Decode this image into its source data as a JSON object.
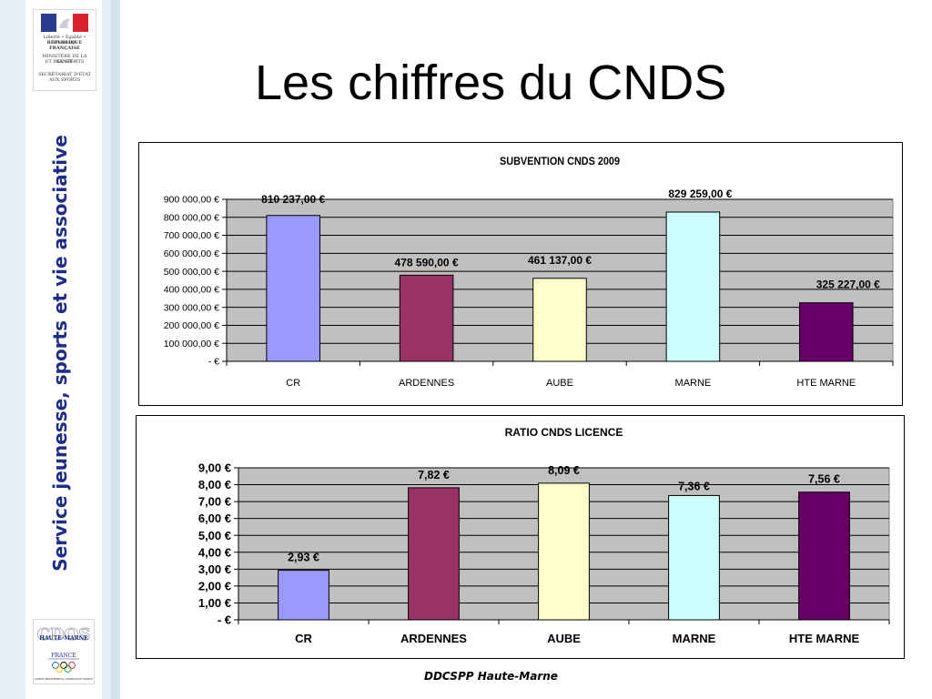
{
  "slide": {
    "title": "Les chiffres du CNDS",
    "sidebar_text": "Service jeunesse, sports et vie associative",
    "footer": "DDCSPP Haute-Marne",
    "logo_top": {
      "motto": "Liberté • Égalité • Fraternité",
      "republic": "RÉPUBLIQUE FRANÇAISE",
      "ministry": [
        "MINISTÈRE DE LA SANTÉ",
        "ET DES SPORTS"
      ],
      "secretariat": [
        "SECRÉTARIAT D'ÉTAT",
        "AUX SPORTS"
      ]
    },
    "logo_bottom": {
      "name": "CDOS",
      "region": "HAUTE-MARNE",
      "country": "FRANCE",
      "caption": "COMITÉ DÉPARTEMENTAL OLYMPIQUE ET SPORTIF"
    }
  },
  "chart_data": [
    {
      "type": "bar",
      "title": "SUBVENTION CNDS 2009",
      "categories": [
        "CR",
        "ARDENNES",
        "AUBE",
        "MARNE",
        "HTE MARNE"
      ],
      "values": [
        810237,
        478590,
        461137,
        829259,
        325227
      ],
      "data_labels": [
        "810 237,00 €",
        "478 590,00 €",
        "461 137,00 €",
        "829 259,00 €",
        "325 227,00 €"
      ],
      "bar_colors": [
        "#9999ff",
        "#993366",
        "#ffffcc",
        "#ccffff",
        "#660066"
      ],
      "ylim": [
        0,
        900000
      ],
      "yticks": [
        0,
        100000,
        200000,
        300000,
        400000,
        500000,
        600000,
        700000,
        800000,
        900000
      ],
      "ytick_labels": [
        "-    €",
        "100 000,00 €",
        "200 000,00 €",
        "300 000,00 €",
        "400 000,00 €",
        "500 000,00 €",
        "600 000,00 €",
        "700 000,00 €",
        "800 000,00 €",
        "900 000,00 €"
      ],
      "plot_bg": "#c0c0c0",
      "grid": true,
      "xlabel": "",
      "ylabel": ""
    },
    {
      "type": "bar",
      "title": "RATIO CNDS LICENCE",
      "categories": [
        "CR",
        "ARDENNES",
        "AUBE",
        "MARNE",
        "HTE MARNE"
      ],
      "values": [
        2.93,
        7.82,
        8.09,
        7.36,
        7.56
      ],
      "data_labels": [
        "2,93 €",
        "7,82 €",
        "8,09 €",
        "7,36 €",
        "7,56 €"
      ],
      "bar_colors": [
        "#9999ff",
        "#993366",
        "#ffffcc",
        "#ccffff",
        "#660066"
      ],
      "ylim": [
        0,
        9
      ],
      "yticks": [
        0,
        1,
        2,
        3,
        4,
        5,
        6,
        7,
        8,
        9
      ],
      "ytick_labels": [
        "-    €",
        "1,00 €",
        "2,00 €",
        "3,00 €",
        "4,00 €",
        "5,00 €",
        "6,00 €",
        "7,00 €",
        "8,00 €",
        "9,00 €"
      ],
      "plot_bg": "#c0c0c0",
      "grid": true,
      "xlabel": "",
      "ylabel": ""
    }
  ]
}
